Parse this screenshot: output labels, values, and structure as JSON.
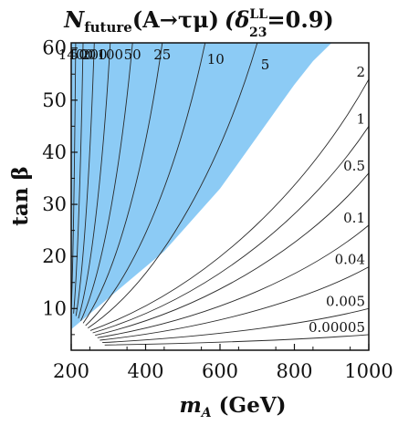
{
  "chart_data": {
    "type": "contour",
    "title": "N_future(A→τμ) (δ_23^LL=0.9)",
    "title_parts": {
      "N": "N",
      "sub": "future",
      "process": "(A→τμ)",
      "delta_open": "(δ",
      "delta_sup": "LL",
      "delta_sub": "23",
      "delta_close": "=0.9)"
    },
    "xlabel": "m_A (GeV)",
    "xlabel_parts": {
      "m": "m",
      "sub": "A",
      "unit": " (GeV)"
    },
    "ylabel": "tan β",
    "xlim": [
      200,
      1000
    ],
    "ylim": [
      2,
      61
    ],
    "x_ticks": [
      200,
      400,
      600,
      800,
      1000
    ],
    "y_ticks": [
      10,
      20,
      30,
      40,
      50,
      60
    ],
    "shaded_region": {
      "color": "#8ccbf5",
      "boundary_x": [
        200,
        250,
        300,
        350,
        400,
        450,
        500,
        550,
        600,
        650,
        700,
        750,
        800,
        850,
        900
      ],
      "boundary_y": [
        6,
        9,
        12,
        15,
        18,
        21,
        25,
        29,
        33,
        38,
        43,
        48,
        53,
        57.5,
        61
      ]
    },
    "contour_levels": [
      "1400",
      "500",
      "200",
      "100",
      "50",
      "25",
      "10",
      "5",
      "2",
      "1",
      "0.5",
      "0.1",
      "0.04",
      "0.005",
      "0.00005"
    ],
    "contour_ends": [
      {
        "level": "1400",
        "x": 212,
        "y": 61
      },
      {
        "level": "500",
        "x": 232,
        "y": 61
      },
      {
        "level": "200",
        "x": 262,
        "y": 61
      },
      {
        "level": "100",
        "x": 305,
        "y": 61
      },
      {
        "level": "50",
        "x": 365,
        "y": 61
      },
      {
        "level": "25",
        "x": 445,
        "y": 61
      },
      {
        "level": "10",
        "x": 560,
        "y": 61
      },
      {
        "level": "5",
        "x": 700,
        "y": 61
      },
      {
        "level": "2",
        "x": 1000,
        "y": 54
      },
      {
        "level": "1",
        "x": 1000,
        "y": 45
      },
      {
        "level": "0.5",
        "x": 1000,
        "y": 36
      },
      {
        "level": "0.1",
        "x": 1000,
        "y": 26
      },
      {
        "level": "0.04",
        "x": 1000,
        "y": 18
      },
      {
        "level": "0.005",
        "x": 1000,
        "y": 10
      },
      {
        "level": "0.00005",
        "x": 1000,
        "y": 5
      }
    ],
    "grid": false,
    "legend": "none"
  }
}
